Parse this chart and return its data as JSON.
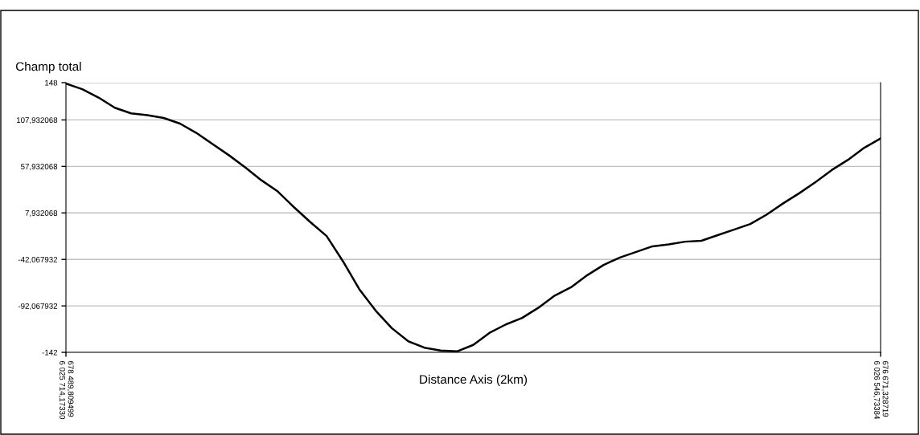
{
  "chart_data": {
    "type": "line",
    "ylabel": "Champ total",
    "xlabel": "Distance Axis (2km)",
    "categories": [
      "678 489,809499\n6 025 714,17330",
      null,
      null,
      null,
      null,
      null,
      null,
      null,
      null,
      null,
      null,
      null,
      null,
      null,
      null,
      null,
      null,
      null,
      null,
      null,
      null,
      null,
      null,
      null,
      null,
      null,
      null,
      null,
      null,
      null,
      null,
      null,
      null,
      null,
      null,
      null,
      null,
      null,
      null,
      null,
      null,
      null,
      null,
      null,
      null,
      null,
      null,
      null,
      null,
      null,
      "676 671,328719\n6 026 546,73384"
    ],
    "series": [
      {
        "color": "#000000",
        "values": [
          147,
          141,
          132,
          121,
          115,
          113,
          110,
          104,
          94,
          82,
          70,
          57,
          43,
          31,
          14,
          -2,
          -17,
          -44,
          -74,
          -97,
          -116,
          -130,
          -137,
          -140,
          -141,
          -134,
          -121,
          -112,
          -105,
          -94,
          -81,
          -72,
          -59,
          -48,
          -40,
          -34,
          -28,
          -26,
          -23,
          -22,
          -16,
          -10,
          -4,
          6,
          18,
          29,
          41,
          54,
          65,
          78,
          88
        ]
      }
    ],
    "ylim": [
      -142,
      148
    ],
    "yticks": [
      -142,
      {
        "value": -92.067932,
        "label": "-92,067932"
      },
      {
        "value": -42.067932,
        "label": "-42,067932"
      },
      {
        "value": 7.932068,
        "label": "7,932068"
      },
      {
        "value": 57.932068,
        "label": "57,932068"
      },
      {
        "value": 107.932068,
        "label": "107,932068"
      },
      148
    ],
    "grid": "y",
    "marker": "none",
    "line_style": "solid"
  }
}
